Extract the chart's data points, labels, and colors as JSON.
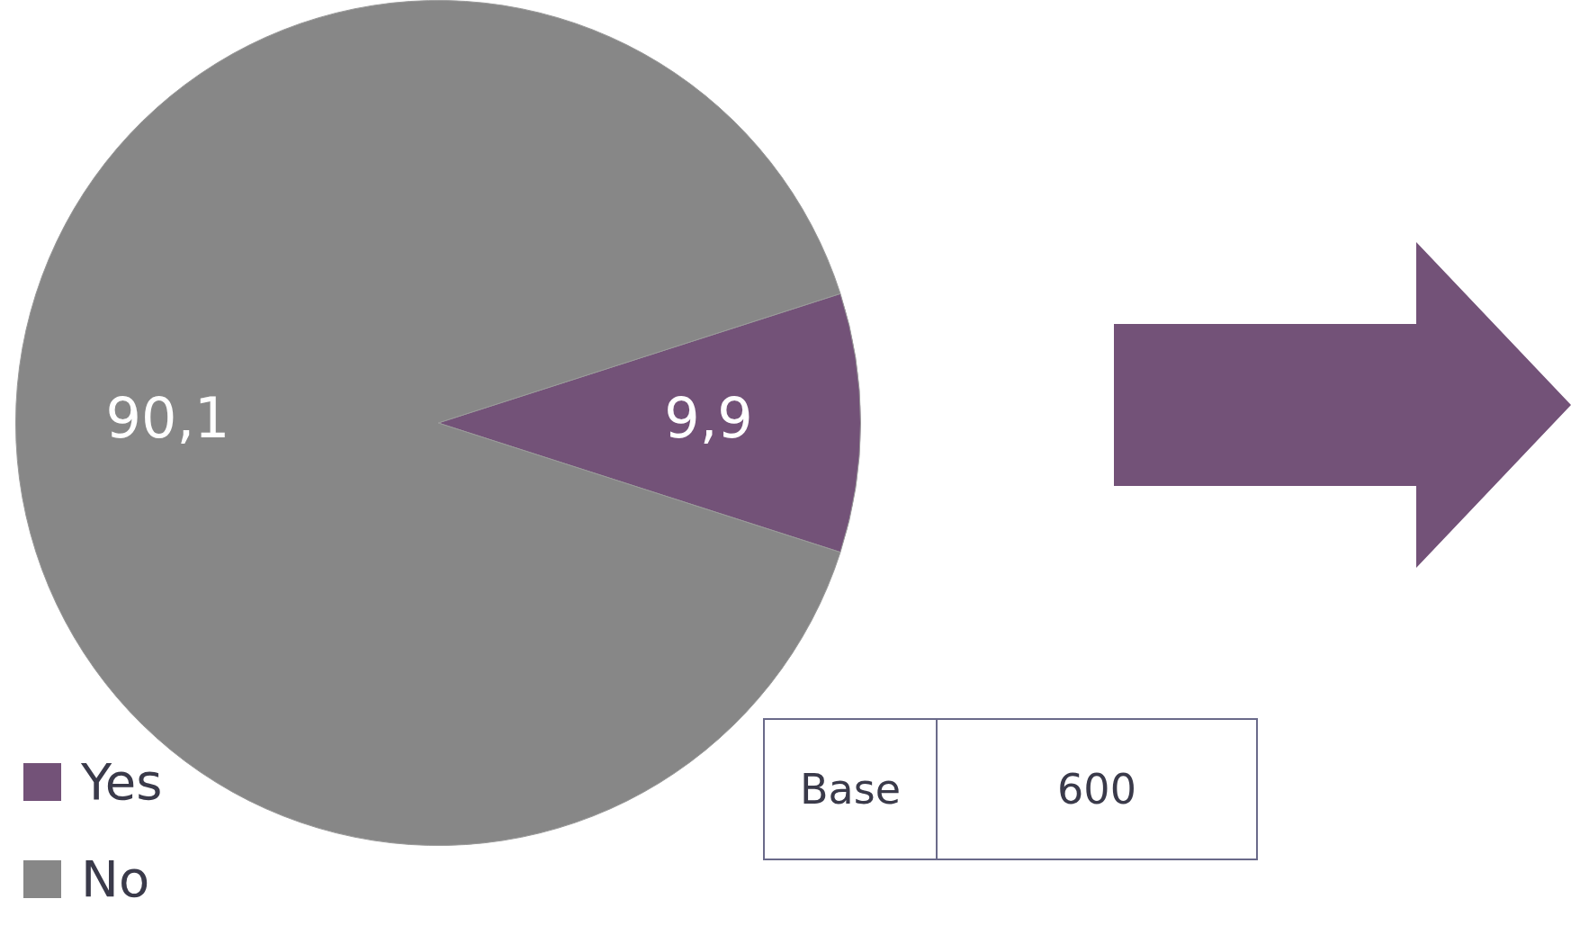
{
  "chart_data": {
    "type": "pie",
    "categories": [
      "Yes",
      "No"
    ],
    "values": [
      9.9,
      90.1
    ],
    "colors": [
      "#735278",
      "#878787"
    ],
    "value_labels": [
      "9,9",
      "90,1"
    ],
    "legend": "bottom left",
    "annotations": [
      "Base",
      "600"
    ]
  }
}
